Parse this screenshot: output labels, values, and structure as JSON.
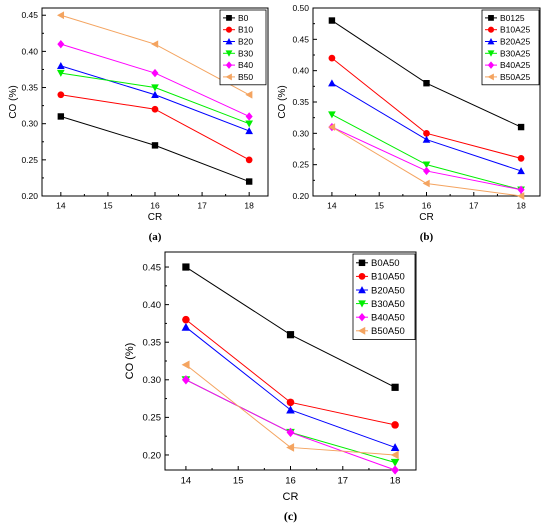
{
  "colors": {
    "black": "#000000",
    "red": "#ff0000",
    "blue": "#0000ff",
    "green": "#00ee00",
    "magenta": "#ff00ff",
    "orange": "#f4a460"
  },
  "chart_data": [
    {
      "type": "line",
      "caption": "(a)",
      "xlabel": "CR",
      "ylabel": "CO (%)",
      "x": [
        14,
        16,
        18
      ],
      "xlim": [
        13.6,
        18.4
      ],
      "xticks": [
        "14",
        "15",
        "16",
        "17",
        "18"
      ],
      "ylim": [
        0.2,
        0.46
      ],
      "yticks": [
        "0.20",
        "0.25",
        "0.30",
        "0.35",
        "0.40",
        "0.45"
      ],
      "legend_position": "top-right",
      "series": [
        {
          "name": "B0",
          "color": "#000000",
          "marker": "square",
          "values": [
            0.31,
            0.27,
            0.22
          ]
        },
        {
          "name": "B10",
          "color": "#ff0000",
          "marker": "circle",
          "values": [
            0.34,
            0.32,
            0.25
          ]
        },
        {
          "name": "B20",
          "color": "#0000ff",
          "marker": "triangle-up",
          "values": [
            0.38,
            0.34,
            0.29
          ]
        },
        {
          "name": "B30",
          "color": "#00ee00",
          "marker": "triangle-down",
          "values": [
            0.37,
            0.35,
            0.3
          ]
        },
        {
          "name": "B40",
          "color": "#ff00ff",
          "marker": "diamond",
          "values": [
            0.41,
            0.37,
            0.31
          ]
        },
        {
          "name": "B50",
          "color": "#f4a460",
          "marker": "triangle-left",
          "values": [
            0.45,
            0.41,
            0.34
          ]
        }
      ]
    },
    {
      "type": "line",
      "caption": "(b)",
      "xlabel": "CR",
      "ylabel": "CO (%)",
      "x": [
        14,
        16,
        18
      ],
      "xlim": [
        13.6,
        18.4
      ],
      "xticks": [
        "14",
        "15",
        "16",
        "17",
        "18"
      ],
      "ylim": [
        0.2,
        0.5
      ],
      "yticks": [
        "0.20",
        "0.25",
        "0.30",
        "0.35",
        "0.40",
        "0.45",
        "0.50"
      ],
      "legend_position": "top-right",
      "series": [
        {
          "name": "B0125",
          "color": "#000000",
          "marker": "square",
          "values": [
            0.48,
            0.38,
            0.31
          ]
        },
        {
          "name": "B10A25",
          "color": "#ff0000",
          "marker": "circle",
          "values": [
            0.42,
            0.3,
            0.26
          ]
        },
        {
          "name": "B20A25",
          "color": "#0000ff",
          "marker": "triangle-up",
          "values": [
            0.38,
            0.29,
            0.24
          ]
        },
        {
          "name": "B30A25",
          "color": "#00ee00",
          "marker": "triangle-down",
          "values": [
            0.33,
            0.25,
            0.21
          ]
        },
        {
          "name": "B40A25",
          "color": "#ff00ff",
          "marker": "diamond",
          "values": [
            0.31,
            0.24,
            0.21
          ]
        },
        {
          "name": "B50A25",
          "color": "#f4a460",
          "marker": "triangle-left",
          "values": [
            0.31,
            0.22,
            0.2
          ]
        }
      ]
    },
    {
      "type": "line",
      "caption": "(c)",
      "xlabel": "CR",
      "ylabel": "CO (%)",
      "x": [
        14,
        16,
        18
      ],
      "xlim": [
        13.6,
        18.4
      ],
      "xticks": [
        "14",
        "15",
        "16",
        "17",
        "18"
      ],
      "ylim": [
        0.18,
        0.47
      ],
      "yticks": [
        "0.20",
        "0.25",
        "0.30",
        "0.35",
        "0.40",
        "0.45"
      ],
      "legend_position": "top-right",
      "series": [
        {
          "name": "B0A50",
          "color": "#000000",
          "marker": "square",
          "values": [
            0.45,
            0.36,
            0.29
          ]
        },
        {
          "name": "B10A50",
          "color": "#ff0000",
          "marker": "circle",
          "values": [
            0.38,
            0.27,
            0.24
          ]
        },
        {
          "name": "B20A50",
          "color": "#0000ff",
          "marker": "triangle-up",
          "values": [
            0.37,
            0.26,
            0.21
          ]
        },
        {
          "name": "B30A50",
          "color": "#00ee00",
          "marker": "triangle-down",
          "values": [
            0.3,
            0.23,
            0.19
          ]
        },
        {
          "name": "B40A50",
          "color": "#ff00ff",
          "marker": "diamond",
          "values": [
            0.3,
            0.23,
            0.18
          ]
        },
        {
          "name": "B50A50",
          "color": "#f4a460",
          "marker": "triangle-left",
          "values": [
            0.32,
            0.21,
            0.2
          ]
        }
      ]
    }
  ]
}
